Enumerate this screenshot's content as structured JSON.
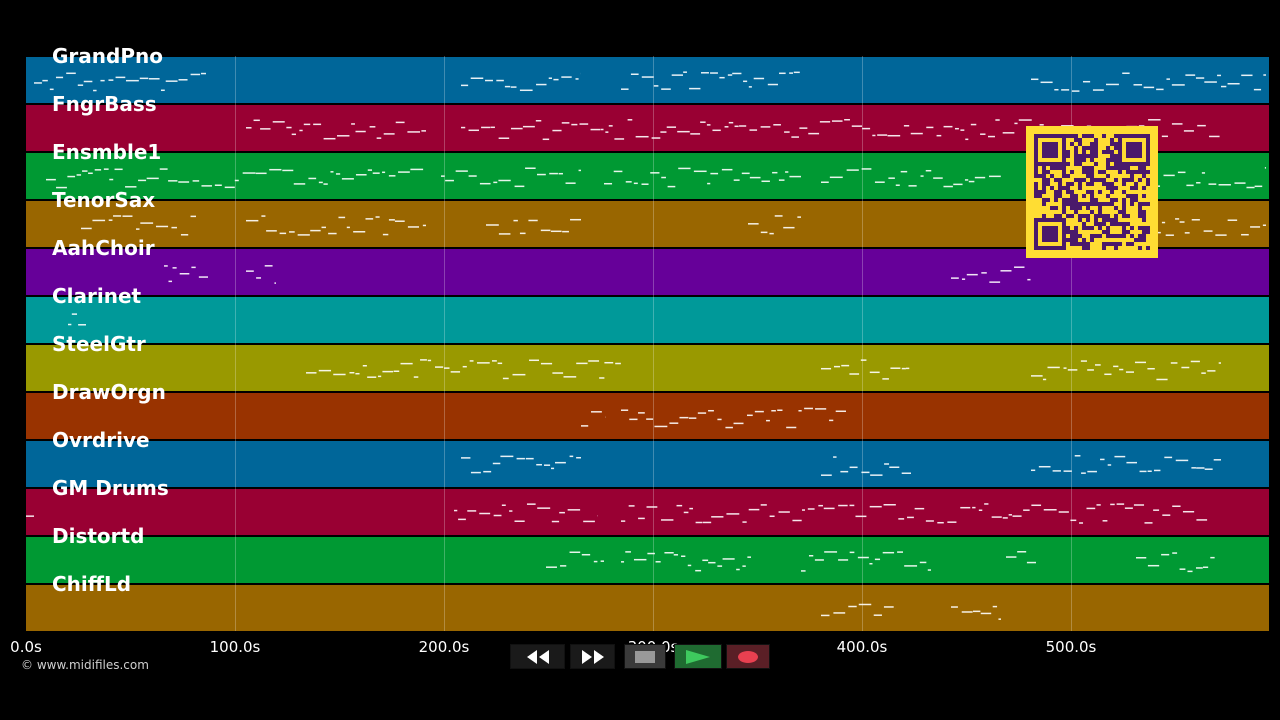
{
  "tracks": [
    {
      "name": "GrandPno",
      "color": "#006699"
    },
    {
      "name": "FngrBass",
      "color": "#990033"
    },
    {
      "name": "Ensmble1",
      "color": "#009933"
    },
    {
      "name": "TenorSax",
      "color": "#996600"
    },
    {
      "name": "AahChoir",
      "color": "#660099"
    },
    {
      "name": "Clarinet",
      "color": "#009999"
    },
    {
      "name": "SteelGtr",
      "color": "#999900"
    },
    {
      "name": "DrawOrgn",
      "color": "#993300"
    },
    {
      "name": "Ovrdrive",
      "color": "#006699"
    },
    {
      "name": "GM Drums",
      "color": "#990033"
    },
    {
      "name": "Distortd",
      "color": "#009933"
    },
    {
      "name": "ChiffLd",
      "color": "#996600"
    }
  ],
  "timeline": {
    "ticks": [
      "0.0s",
      "100.0s",
      "200.0s",
      "300.0s",
      "400.0s",
      "500.0s"
    ]
  },
  "copyright": "© www.midifiles.com",
  "transport": {
    "rewind": "rewind-icon",
    "fast_forward": "fast-forward-icon",
    "stop": "stop-icon",
    "play": "play-icon",
    "record": "record-icon",
    "colors": {
      "play": "#2aa84a",
      "record": "#e84050",
      "stop": "#888888"
    }
  },
  "qr_colors": {
    "fg": "#4a1a6b",
    "bg": "#ffdd33"
  }
}
